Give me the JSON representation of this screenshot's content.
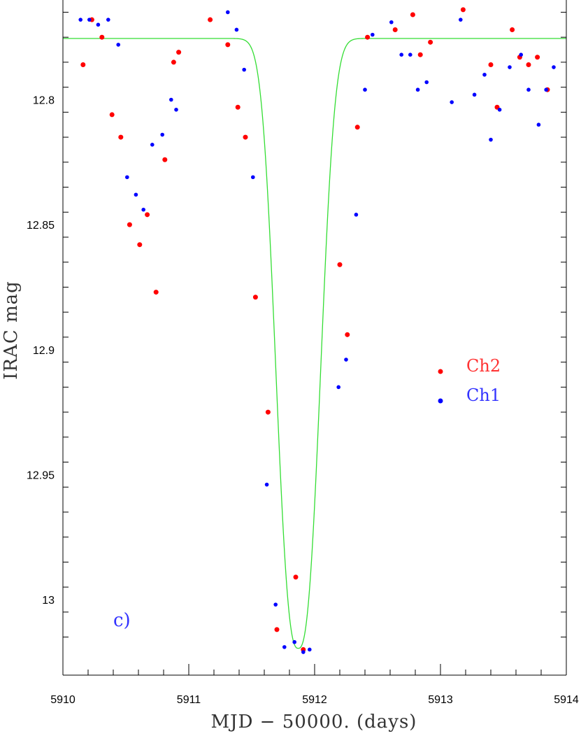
{
  "chart_data": {
    "type": "scatter",
    "xlabel": "MJD − 50000. (days)",
    "ylabel": "IRAC mag",
    "xlim": [
      5910,
      5914
    ],
    "ylim": [
      13.02,
      12.765
    ],
    "y_inverted": true,
    "x_ticks": [
      "5910",
      "5911",
      "5912",
      "5913",
      "5914"
    ],
    "y_ticks": [
      "12.8",
      "12.85",
      "12.9",
      "12.95",
      "13"
    ],
    "panel_label": "c)",
    "grid": false,
    "legend_position": "center-right",
    "series": [
      {
        "name": "Ch2",
        "color": "#ff0000",
        "points": [
          [
            5910.16,
            12.786
          ],
          [
            5910.23,
            12.768
          ],
          [
            5910.31,
            12.775
          ],
          [
            5910.39,
            12.806
          ],
          [
            5910.46,
            12.815
          ],
          [
            5910.53,
            12.85
          ],
          [
            5910.61,
            12.858
          ],
          [
            5910.67,
            12.846
          ],
          [
            5910.74,
            12.877
          ],
          [
            5910.81,
            12.824
          ],
          [
            5910.88,
            12.785
          ],
          [
            5910.92,
            12.781
          ],
          [
            5911.17,
            12.768
          ],
          [
            5911.31,
            12.778
          ],
          [
            5911.39,
            12.803
          ],
          [
            5911.45,
            12.815
          ],
          [
            5911.53,
            12.879
          ],
          [
            5911.63,
            12.925
          ],
          [
            5911.7,
            13.012
          ],
          [
            5911.85,
            12.991
          ],
          [
            5911.91,
            13.02
          ],
          [
            5912.2,
            12.866
          ],
          [
            5912.26,
            12.894
          ],
          [
            5912.34,
            12.811
          ],
          [
            5912.42,
            12.775
          ],
          [
            5912.64,
            12.772
          ],
          [
            5912.78,
            12.766
          ],
          [
            5912.84,
            12.782
          ],
          [
            5912.92,
            12.777
          ],
          [
            5913.18,
            12.764
          ],
          [
            5913.4,
            12.786
          ],
          [
            5913.45,
            12.803
          ],
          [
            5913.57,
            12.772
          ],
          [
            5913.63,
            12.783
          ],
          [
            5913.7,
            12.786
          ],
          [
            5913.77,
            12.783
          ],
          [
            5913.85,
            12.796
          ]
        ]
      },
      {
        "name": "Ch1",
        "color": "#0000ff",
        "points": [
          [
            5910.14,
            12.768
          ],
          [
            5910.21,
            12.768
          ],
          [
            5910.28,
            12.77
          ],
          [
            5910.36,
            12.768
          ],
          [
            5910.44,
            12.778
          ],
          [
            5910.51,
            12.831
          ],
          [
            5910.58,
            12.838
          ],
          [
            5910.64,
            12.844
          ],
          [
            5910.71,
            12.818
          ],
          [
            5910.79,
            12.814
          ],
          [
            5910.86,
            12.8
          ],
          [
            5910.9,
            12.804
          ],
          [
            5911.31,
            12.765
          ],
          [
            5911.38,
            12.772
          ],
          [
            5911.44,
            12.788
          ],
          [
            5911.51,
            12.831
          ],
          [
            5911.62,
            12.954
          ],
          [
            5911.69,
            13.002
          ],
          [
            5911.76,
            13.019
          ],
          [
            5911.84,
            13.017
          ],
          [
            5911.91,
            13.021
          ],
          [
            5911.96,
            13.02
          ],
          [
            5912.19,
            12.915
          ],
          [
            5912.25,
            12.904
          ],
          [
            5912.33,
            12.846
          ],
          [
            5912.4,
            12.796
          ],
          [
            5912.46,
            12.774
          ],
          [
            5912.61,
            12.769
          ],
          [
            5912.69,
            12.782
          ],
          [
            5912.76,
            12.782
          ],
          [
            5912.82,
            12.796
          ],
          [
            5912.89,
            12.793
          ],
          [
            5913.09,
            12.801
          ],
          [
            5913.16,
            12.768
          ],
          [
            5913.27,
            12.798
          ],
          [
            5913.35,
            12.79
          ],
          [
            5913.4,
            12.816
          ],
          [
            5913.47,
            12.804
          ],
          [
            5913.55,
            12.787
          ],
          [
            5913.64,
            12.782
          ],
          [
            5913.7,
            12.796
          ],
          [
            5913.78,
            12.81
          ],
          [
            5913.84,
            12.796
          ],
          [
            5913.9,
            12.787
          ]
        ]
      }
    ],
    "model_curve": {
      "color": "#33dd33",
      "baseline_mag": 12.7755,
      "min_mag": 13.0195,
      "center_mjd": 5911.87,
      "x_range": [
        5910,
        5914
      ]
    }
  }
}
